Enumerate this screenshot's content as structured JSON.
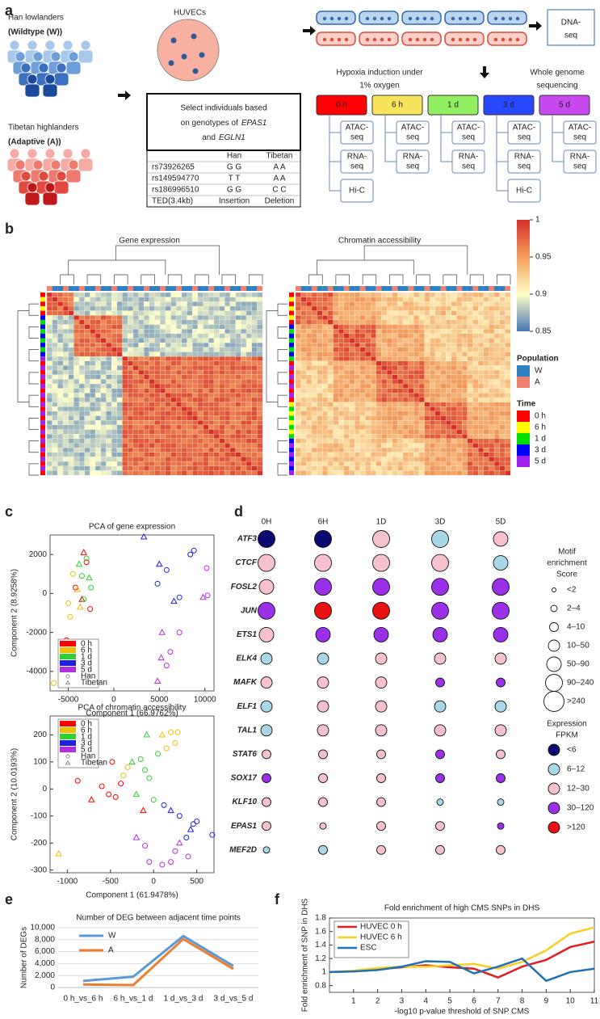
{
  "panel_labels": [
    "a",
    "b",
    "c",
    "d",
    "e",
    "f"
  ],
  "panel_a": {
    "han": [
      "Han lowlanders",
      "(Wildtype (W))"
    ],
    "tibetan": [
      "Tibetan highlanders",
      "(Adaptive (A))"
    ],
    "cells": "HUVECs",
    "select": [
      "Select individuals based",
      "on genotypes of",
      "EPAS1",
      "and",
      "EGLN1"
    ],
    "table": {
      "header": [
        "Han",
        "Tibetan"
      ],
      "rows": [
        [
          "rs73926265",
          "G G",
          "A A"
        ],
        [
          "rs149594770",
          "T T",
          "A A"
        ],
        [
          "rs186996510",
          "G G",
          "C C"
        ],
        [
          "TED(3.4kb)",
          "Insertion",
          "Deletion"
        ]
      ]
    },
    "dnaseq": [
      "DNA-",
      "seq"
    ],
    "hypoxia": [
      "Hypoxia induction under",
      "1% oxygen"
    ],
    "wgs": [
      "Whole genome",
      "sequencing"
    ],
    "timepoints": [
      {
        "label": "0 h",
        "color": "#ff0000",
        "assays": [
          [
            "ATAC-",
            "seq"
          ],
          [
            "RNA-",
            "seq"
          ],
          [
            "Hi-C"
          ]
        ]
      },
      {
        "label": "6 h",
        "color": "#f8e45c",
        "assays": [
          [
            "ATAC-",
            "seq"
          ],
          [
            "RNA-",
            "seq"
          ]
        ]
      },
      {
        "label": "1 d",
        "color": "#90ee60",
        "assays": [
          [
            "ATAC-",
            "seq"
          ],
          [
            "RNA-",
            "seq"
          ]
        ]
      },
      {
        "label": "3 d",
        "color": "#2848ff",
        "assays": [
          [
            "ATAC-",
            "seq"
          ],
          [
            "RNA-",
            "seq"
          ],
          [
            "Hi-C"
          ]
        ]
      },
      {
        "label": "5 d",
        "color": "#c848f0",
        "assays": [
          [
            "ATAC-",
            "seq"
          ],
          [
            "RNA-",
            "seq"
          ]
        ]
      }
    ]
  },
  "panel_b": {
    "titles": [
      "Gene expression",
      "Chromatin accessibility"
    ],
    "colorbar": {
      "lim": [
        0.85,
        1
      ],
      "ticks": [
        0.85,
        0.9,
        0.95,
        1
      ]
    },
    "population": {
      "title": "Population",
      "items": [
        {
          "name": "W",
          "color": "#2f7fc1"
        },
        {
          "name": "A",
          "color": "#f08070"
        }
      ]
    },
    "time": {
      "title": "Time",
      "items": [
        {
          "name": "0 h",
          "color": "#ff0000"
        },
        {
          "name": "6 h",
          "color": "#ffff00"
        },
        {
          "name": "1 d",
          "color": "#00e000"
        },
        {
          "name": "3 d",
          "color": "#0000ff"
        },
        {
          "name": "5 d",
          "color": "#a020f0"
        }
      ]
    }
  },
  "chart_data": [
    {
      "type": "scatter",
      "title": "PCA of gene expression",
      "xlabel": "Component 1 (66.9762%)",
      "ylabel": "Component 2 (8.9258%)",
      "xlim": [
        -7000,
        11000
      ],
      "xticks": [
        -5000,
        0,
        5000,
        10000
      ],
      "ylim": [
        -5000,
        3000
      ],
      "yticks": [
        -4000,
        -2000,
        0,
        2000
      ],
      "legend": "lower left",
      "markers": [
        {
          "name": "Han",
          "marker": "circle"
        },
        {
          "name": "Tibetan",
          "marker": "triangle"
        }
      ],
      "series": [
        {
          "name": "0 h",
          "color": "#ff0000",
          "x": [
            -3300,
            -3000,
            -4200,
            -2600,
            -5200,
            -3500
          ],
          "values": [
            2100,
            1600,
            300,
            -800,
            -2400,
            -300
          ],
          "population": [
            "Tibetan",
            "Han",
            "Han",
            "Han",
            "Han",
            "Tibetan"
          ]
        },
        {
          "name": "6 h",
          "color": "#f0c000",
          "x": [
            -4500,
            -5000,
            -4800,
            -6600,
            -4000,
            -3700
          ],
          "values": [
            1000,
            -500,
            -1200,
            -4600,
            200,
            -700
          ],
          "population": [
            "Han",
            "Han",
            "Han",
            "Han",
            "Tibetan",
            "Tibetan"
          ]
        },
        {
          "name": "1 d",
          "color": "#30d030",
          "x": [
            -3000,
            -2700,
            -3800,
            -3300,
            -2500,
            -3500
          ],
          "values": [
            1800,
            800,
            1500,
            -300,
            300,
            900
          ],
          "population": [
            "Han",
            "Tibetan",
            "Tibetan",
            "Han",
            "Han",
            "Han"
          ]
        },
        {
          "name": "3 d",
          "color": "#2020e0",
          "x": [
            3300,
            8800,
            5000,
            5800,
            4800,
            7200,
            6600,
            8400
          ],
          "values": [
            2900,
            2200,
            1500,
            1200,
            500,
            -200,
            -400,
            2000
          ],
          "population": [
            "Tibetan",
            "Han",
            "Tibetan",
            "Han",
            "Han",
            "Han",
            "Tibetan",
            "Han"
          ]
        },
        {
          "name": "5 d",
          "color": "#b030e0",
          "x": [
            10200,
            9800,
            10300,
            7200,
            5300,
            6200,
            5800,
            4800,
            5200
          ],
          "values": [
            1300,
            -200,
            -100,
            -2000,
            -2000,
            -3000,
            -3700,
            -4500,
            -3300
          ],
          "population": [
            "Han",
            "Tibetan",
            "Han",
            "Han",
            "Tibetan",
            "Han",
            "Han",
            "Tibetan",
            "Tibetan"
          ]
        }
      ]
    },
    {
      "type": "scatter",
      "title": "PCA of chromatin accessibility",
      "xlabel": "Component 1 (61.9478%)",
      "ylabel": "Component 2 (10.0193%)",
      "xlim": [
        -1200,
        700
      ],
      "xticks": [
        -1000,
        -500,
        0,
        500
      ],
      "ylim": [
        -310,
        270
      ],
      "yticks": [
        -300,
        -200,
        -100,
        0,
        100,
        200
      ],
      "legend": "upper left",
      "markers": [
        {
          "name": "Han",
          "marker": "circle"
        },
        {
          "name": "Tibetan",
          "marker": "triangle"
        }
      ],
      "series": [
        {
          "name": "0 h",
          "color": "#ff0000",
          "x": [
            -880,
            -720,
            -600,
            -520,
            -480,
            -380,
            -120,
            -440
          ],
          "values": [
            30,
            -40,
            10,
            -20,
            100,
            20,
            -80,
            -30
          ],
          "population": [
            "Han",
            "Tibetan",
            "Han",
            "Han",
            "Han",
            "Han",
            "Tibetan",
            "Han"
          ]
        },
        {
          "name": "6 h",
          "color": "#f0c000",
          "x": [
            -1100,
            -350,
            -300,
            100,
            200,
            250,
            280,
            150
          ],
          "values": [
            -240,
            50,
            80,
            200,
            210,
            170,
            210,
            150
          ],
          "population": [
            "Tibetan",
            "Han",
            "Han",
            "Tibetan",
            "Han",
            "Han",
            "Han",
            "Han"
          ]
        },
        {
          "name": "1 d",
          "color": "#30d030",
          "x": [
            -250,
            -200,
            -150,
            -100,
            -80,
            -50,
            0,
            50
          ],
          "values": [
            100,
            -20,
            110,
            70,
            200,
            40,
            -40,
            130
          ],
          "population": [
            "Tibetan",
            "Tibetan",
            "Han",
            "Han",
            "Tibetan",
            "Han",
            "Han",
            "Han"
          ]
        },
        {
          "name": "3 d",
          "color": "#2020e0",
          "x": [
            120,
            200,
            300,
            380,
            460,
            500,
            430,
            680
          ],
          "values": [
            -60,
            -80,
            -100,
            -180,
            -130,
            -120,
            -150,
            -170
          ],
          "population": [
            "Han",
            "Tibetan",
            "Han",
            "Han",
            "Han",
            "Han",
            "Tibetan",
            "Han"
          ]
        },
        {
          "name": "5 d",
          "color": "#b030e0",
          "x": [
            -200,
            -50,
            100,
            200,
            250,
            400,
            300,
            -100
          ],
          "values": [
            -180,
            -270,
            -280,
            -270,
            -230,
            -250,
            -200,
            -210
          ],
          "population": [
            "Tibetan",
            "Han",
            "Han",
            "Han",
            "Han",
            "Han",
            "Tibetan",
            "Han"
          ]
        }
      ]
    },
    {
      "type": "dot",
      "columns": [
        "0H",
        "6H",
        "1D",
        "3D",
        "5D"
      ],
      "rows": [
        "ATF3",
        "CTCF",
        "FOSL2",
        "JUN",
        "ETS1",
        "ELK4",
        "MAFK",
        "ELF1",
        "TAL1",
        "STAT6",
        "SOX17",
        "KLF10",
        "EPAS1",
        "MEF2D"
      ],
      "sizes": [
        [
          "90–240",
          "90–240",
          "90–240",
          "90–240",
          "50–90"
        ],
        [
          "90–240",
          "90–240",
          "90–240",
          "90–240",
          "50–90"
        ],
        [
          "50–90",
          "90–240",
          "90–240",
          "90–240",
          "90–240"
        ],
        [
          "90–240",
          "90–240",
          "90–240",
          "90–240",
          "90–240"
        ],
        [
          "50–90",
          "50–90",
          "50–90",
          "50–90",
          "50–90"
        ],
        [
          "10–50",
          "10–50",
          "10–50",
          "10–50",
          "10–50"
        ],
        [
          "10–50",
          "10–50",
          "10–50",
          "4–10",
          "4–10"
        ],
        [
          "10–50",
          "10–50",
          "10–50",
          "10–50",
          "10–50"
        ],
        [
          "10–50",
          "10–50",
          "10–50",
          "10–50",
          "10–50"
        ],
        [
          "4–10",
          "4–10",
          "4–10",
          "4–10",
          "4–10"
        ],
        [
          "4–10",
          "4–10",
          "4–10",
          "4–10",
          "4–10"
        ],
        [
          "4–10",
          "4–10",
          "4–10",
          "2–4",
          "2–4"
        ],
        [
          "4–10",
          "2–4",
          "4–10",
          "4–10",
          "2–4"
        ],
        [
          "2–4",
          "4–10",
          "4–10",
          "4–10",
          "4–10"
        ]
      ],
      "colors": [
        [
          "<6",
          "<6",
          "12–30",
          "6–12",
          "12–30"
        ],
        [
          "12–30",
          "12–30",
          "12–30",
          "12–30",
          "6–12"
        ],
        [
          "12–30",
          "30–120",
          "30–120",
          "30–120",
          "30–120"
        ],
        [
          "30–120",
          ">120",
          ">120",
          "30–120",
          "30–120"
        ],
        [
          "12–30",
          "30–120",
          "30–120",
          "30–120",
          "30–120"
        ],
        [
          "6–12",
          "6–12",
          "12–30",
          "12–30",
          "12–30"
        ],
        [
          "12–30",
          "12–30",
          "12–30",
          "30–120",
          "30–120"
        ],
        [
          "6–12",
          "12–30",
          "12–30",
          "6–12",
          "6–12"
        ],
        [
          "6–12",
          "12–30",
          "12–30",
          "12–30",
          "12–30"
        ],
        [
          "12–30",
          "12–30",
          "12–30",
          "30–120",
          "12–30"
        ],
        [
          "30–120",
          "12–30",
          "12–30",
          "30–120",
          "30–120"
        ],
        [
          "12–30",
          "12–30",
          "12–30",
          "6–12",
          "6–12"
        ],
        [
          "12–30",
          "12–30",
          "12–30",
          "12–30",
          "30–120"
        ],
        [
          "6–12",
          "6–12",
          "12–30",
          "12–30",
          "12–30"
        ]
      ],
      "size_legend": {
        "title": [
          "Motif",
          "enrichment",
          "Score"
        ],
        "items": [
          "<2",
          "2–4",
          "4–10",
          "10–50",
          "50–90",
          "90–240",
          ">240"
        ]
      },
      "color_legend": {
        "title": [
          "Expression",
          "FPKM"
        ],
        "items": [
          {
            "name": "<6",
            "color": "#0a0a70"
          },
          {
            "name": "6–12",
            "color": "#a8d8e8"
          },
          {
            "name": "12–30",
            "color": "#f6c0cc"
          },
          {
            "name": "30–120",
            "color": "#9a30e8"
          },
          {
            "name": ">120",
            "color": "#e81010"
          }
        ]
      }
    },
    {
      "type": "line",
      "title": "Number of DEG between adjacent time points",
      "ylabel": "Number of DEGs",
      "categories": [
        "0 h_vs_6 h",
        "6 h_vs_1 d",
        "1 d_vs_3 d",
        "3 d_vs_5 d"
      ],
      "ylim": [
        0,
        10000
      ],
      "yticks": [
        0,
        {
          "value": 2000,
          "label": "2,000"
        },
        {
          "value": 4000,
          "label": "4,000"
        },
        {
          "value": 6000,
          "label": "6,000"
        },
        {
          "value": 8000,
          "label": "8,000"
        },
        {
          "value": 10000,
          "label": "10,000"
        }
      ],
      "grid": true,
      "legend": "upper left",
      "series": [
        {
          "name": "W",
          "color": "#5b9bd5",
          "values": [
            1100,
            1800,
            8600,
            3600
          ]
        },
        {
          "name": "A",
          "color": "#ed7d31",
          "values": [
            500,
            400,
            8100,
            3100
          ]
        }
      ]
    },
    {
      "type": "line",
      "title": "Fold enrichment of high CMS SNPs in DHS",
      "xlabel": "-log10 p-value threshold of SNP CMS",
      "ylabel": "Fold enrichment of SNP in DHS",
      "x": [
        0,
        1,
        2,
        3,
        4,
        5,
        6,
        7,
        8,
        9,
        10,
        11
      ],
      "xlim": [
        0,
        11
      ],
      "xticks": [
        1,
        2,
        3,
        4,
        5,
        6,
        7,
        8,
        9,
        10,
        11
      ],
      "ylim": [
        0.7,
        1.8
      ],
      "yticks": [
        0.8,
        1,
        1.2,
        1.4,
        1.6,
        1.8
      ],
      "legend": "upper left",
      "series": [
        {
          "name": "HUVEC 0 h",
          "color": "#e02020",
          "values": [
            1,
            1.01,
            1.04,
            1.07,
            1.1,
            1.07,
            1.05,
            0.92,
            1.08,
            1.18,
            1.37,
            1.45
          ]
        },
        {
          "name": "HUVEC 6 h",
          "color": "#f8d020",
          "values": [
            1,
            1.02,
            1.06,
            1.08,
            1.08,
            1.1,
            1.12,
            1.05,
            1.15,
            1.32,
            1.57,
            1.66
          ]
        },
        {
          "name": "ESC",
          "color": "#2070b8",
          "values": [
            1,
            1.01,
            1.03,
            1.08,
            1.16,
            1.15,
            0.98,
            1.08,
            1.2,
            0.87,
            1.0,
            1.05
          ]
        }
      ]
    }
  ]
}
